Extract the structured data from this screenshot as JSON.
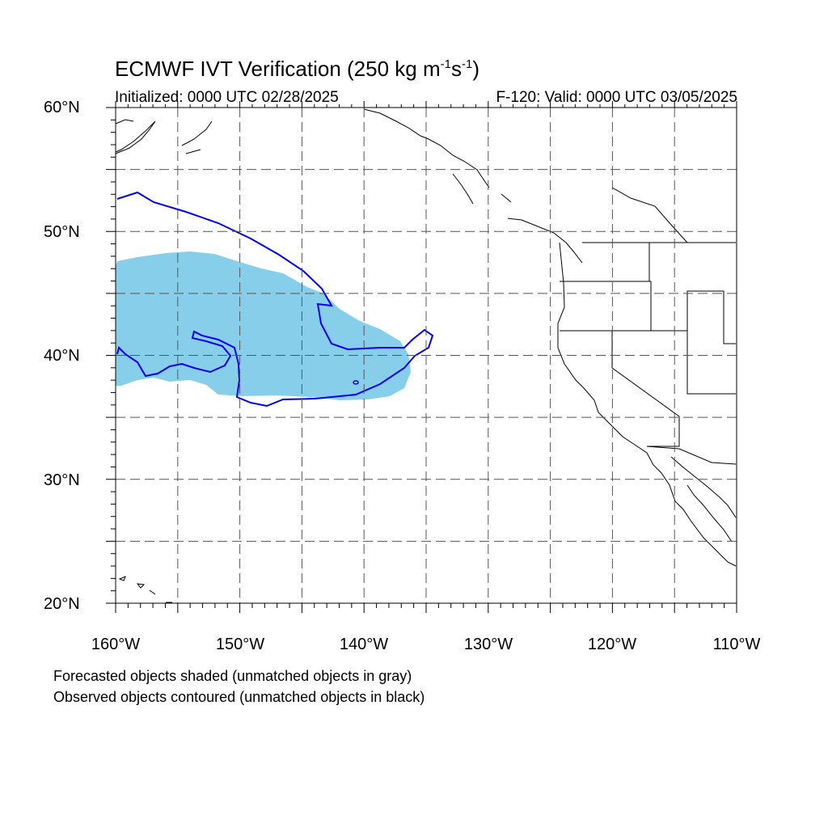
{
  "title": {
    "prefix": "ECMWF IVT Verification (250 kg m",
    "sup1": "-1",
    "mid": "s",
    "sup2": "-1",
    "suffix": ")"
  },
  "subtitle": {
    "initialized": "Initialized: 0000 UTC 02/28/2025",
    "valid": "F-120: Valid: 0000 UTC 03/05/2025"
  },
  "map": {
    "projection": "cylindrical equidistant",
    "lon_range": [
      -160,
      -110
    ],
    "lat_range": [
      20,
      60
    ],
    "grid": "dashed every 5 degrees",
    "lat_labels": [
      "60°N",
      "50°N",
      "40°N",
      "30°N",
      "20°N"
    ],
    "lon_labels": [
      "160°W",
      "150°W",
      "140°W",
      "130°W",
      "120°W",
      "110°W"
    ],
    "colors": {
      "forecast_shade": "#87ceeb",
      "observed_contour": "#0000ee",
      "coastline": "#000000",
      "grid": "#555555"
    }
  },
  "notes": {
    "line1": "Forecasted objects shaded (unmatched objects in gray)",
    "line2": "Observed objects contoured (unmatched objects in black)"
  }
}
